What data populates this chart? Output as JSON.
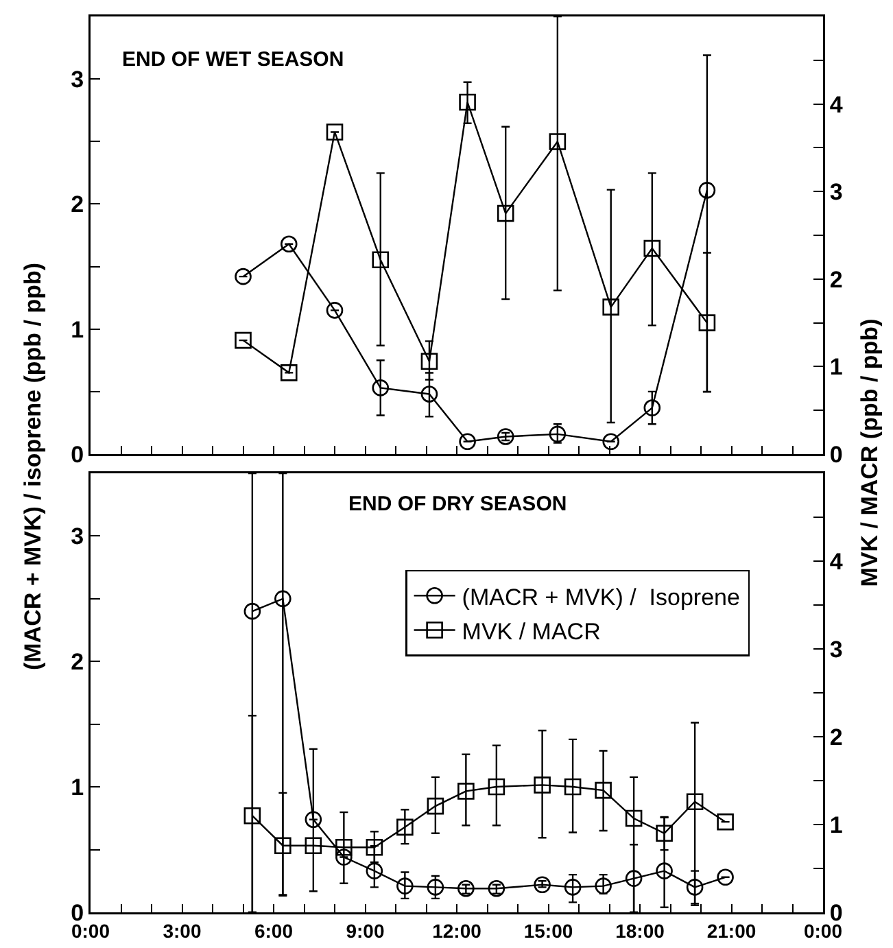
{
  "chart_data": [
    {
      "type": "line",
      "annotations": [
        "END OF WET SEASON"
      ],
      "ylabel": "(MACR + MVK) / isoprene   (ppb / ppb)",
      "y2label": "MVK / MACR   (ppb / ppb)",
      "xlim": [
        0,
        24
      ],
      "xticks": [
        {
          "value": 0,
          "label": null
        },
        {
          "value": 1,
          "label": null
        },
        {
          "value": 2,
          "label": null
        },
        {
          "value": 3,
          "label": null
        },
        {
          "value": 4,
          "label": null
        },
        {
          "value": 5,
          "label": null
        },
        {
          "value": 6,
          "label": null
        },
        {
          "value": 7,
          "label": null
        },
        {
          "value": 8,
          "label": null
        },
        {
          "value": 9,
          "label": null
        },
        {
          "value": 10,
          "label": null
        },
        {
          "value": 11,
          "label": null
        },
        {
          "value": 12,
          "label": null
        },
        {
          "value": 13,
          "label": null
        },
        {
          "value": 14,
          "label": null
        },
        {
          "value": 15,
          "label": null
        },
        {
          "value": 16,
          "label": null
        },
        {
          "value": 17,
          "label": null
        },
        {
          "value": 18,
          "label": null
        },
        {
          "value": 19,
          "label": null
        },
        {
          "value": 20,
          "label": null
        },
        {
          "value": 21,
          "label": null
        },
        {
          "value": 22,
          "label": null
        },
        {
          "value": 23,
          "label": null
        },
        {
          "value": 24,
          "label": null
        }
      ],
      "ylim": [
        0,
        3.5
      ],
      "yticks": [
        0,
        {
          "value": 0.5,
          "label": null
        },
        1,
        {
          "value": 1.5,
          "label": null
        },
        2,
        {
          "value": 2.5,
          "label": null
        },
        3
      ],
      "y2lim": [
        0,
        5
      ],
      "y2ticks": [
        0,
        {
          "value": 0.5,
          "label": null
        },
        1,
        {
          "value": 1.5,
          "label": null
        },
        2,
        {
          "value": 2.5,
          "label": null
        },
        3,
        {
          "value": 3.5,
          "label": null
        },
        4,
        {
          "value": 4.5,
          "label": null
        }
      ],
      "tick_labels": "y",
      "grid": false,
      "legend": false,
      "line_style": "solid",
      "series": [
        {
          "color": "#000000",
          "marker": "circle",
          "x": [
            5.0,
            6.5,
            8.0,
            9.5,
            11.1,
            12.35,
            13.6,
            15.3,
            17.05,
            18.4,
            20.2
          ],
          "values": [
            1.42,
            1.68,
            1.15,
            0.53,
            0.48,
            0.1,
            0.14,
            0.16,
            0.1,
            0.37,
            2.11
          ],
          "errors": [
            null,
            null,
            null,
            [
              0.31,
              0.75
            ],
            [
              0.3,
              0.65
            ],
            null,
            [
              0.11,
              0.17
            ],
            [
              0.09,
              0.24
            ],
            null,
            [
              0.24,
              0.5
            ],
            [
              0.5,
              3.19
            ]
          ]
        },
        {
          "color": "#000000",
          "marker": "square",
          "axis": "y2",
          "x": [
            5.0,
            6.5,
            8.0,
            9.5,
            11.1,
            12.35,
            13.6,
            15.3,
            17.05,
            18.4,
            20.2
          ],
          "values": [
            1.3,
            0.93,
            3.68,
            2.22,
            1.06,
            4.02,
            2.75,
            3.57,
            1.68,
            2.35,
            1.5
          ],
          "errors": [
            null,
            null,
            null,
            [
              1.24,
              3.21
            ],
            [
              0.85,
              1.29
            ],
            [
              3.78,
              4.25
            ],
            [
              1.77,
              3.74
            ],
            [
              1.87,
              5.0
            ],
            [
              0.36,
              3.02
            ],
            [
              1.47,
              3.21
            ],
            [
              0.71,
              2.3
            ]
          ]
        }
      ]
    },
    {
      "type": "line",
      "annotations": [
        "END OF DRY SEASON"
      ],
      "xlim": [
        0,
        24
      ],
      "xticks": [
        {
          "value": 0,
          "label": "0:00"
        },
        {
          "value": 1,
          "label": null
        },
        {
          "value": 2,
          "label": null
        },
        {
          "value": 3,
          "label": "3:00"
        },
        {
          "value": 4,
          "label": null
        },
        {
          "value": 5,
          "label": null
        },
        {
          "value": 6,
          "label": "6:00"
        },
        {
          "value": 7,
          "label": null
        },
        {
          "value": 8,
          "label": null
        },
        {
          "value": 9,
          "label": "9:00"
        },
        {
          "value": 10,
          "label": null
        },
        {
          "value": 11,
          "label": null
        },
        {
          "value": 12,
          "label": "12:00"
        },
        {
          "value": 13,
          "label": null
        },
        {
          "value": 14,
          "label": null
        },
        {
          "value": 15,
          "label": "15:00"
        },
        {
          "value": 16,
          "label": null
        },
        {
          "value": 17,
          "label": null
        },
        {
          "value": 18,
          "label": "18:00"
        },
        {
          "value": 19,
          "label": null
        },
        {
          "value": 20,
          "label": null
        },
        {
          "value": 21,
          "label": "21:00"
        },
        {
          "value": 22,
          "label": null
        },
        {
          "value": 23,
          "label": null
        },
        {
          "value": 24,
          "label": "0:00"
        }
      ],
      "ylim": [
        0,
        3.5
      ],
      "yticks": [
        0,
        {
          "value": 0.5,
          "label": null
        },
        1,
        {
          "value": 1.5,
          "label": null
        },
        2,
        {
          "value": 2.5,
          "label": null
        },
        3
      ],
      "y2lim": [
        0,
        5
      ],
      "y2ticks": [
        0,
        {
          "value": 0.5,
          "label": null
        },
        1,
        {
          "value": 1.5,
          "label": null
        },
        2,
        {
          "value": 2.5,
          "label": null
        },
        3,
        {
          "value": 3.5,
          "label": null
        },
        4,
        {
          "value": 4.5,
          "label": null
        }
      ],
      "grid": false,
      "legend": "top right",
      "line_style": "solid",
      "series": [
        {
          "name": "(MACR + MVK) /  Isoprene",
          "color": "#000000",
          "marker": "circle",
          "x": [
            5.3,
            6.3,
            7.3,
            8.3,
            9.3,
            10.3,
            11.3,
            12.3,
            13.3,
            14.8,
            15.8,
            16.8,
            17.8,
            18.8,
            19.8,
            20.8
          ],
          "values": [
            2.4,
            2.5,
            0.74,
            0.44,
            0.33,
            0.21,
            0.2,
            0.19,
            0.19,
            0.22,
            0.2,
            0.21,
            0.27,
            0.33,
            0.2,
            0.28
          ],
          "errors": [
            [
              0,
              3.5
            ],
            [
              0.14,
              3.5
            ],
            null,
            null,
            [
              0.2,
              0.53
            ],
            [
              0.11,
              0.32
            ],
            [
              0.11,
              0.29
            ],
            [
              0.15,
              0.22
            ],
            [
              0.15,
              0.22
            ],
            [
              0.2,
              0.25
            ],
            [
              0.08,
              0.3
            ],
            [
              0.15,
              0.3
            ],
            [
              0,
              0.54
            ],
            [
              0.04,
              0.76
            ],
            [
              0.07,
              0.33
            ],
            null
          ]
        },
        {
          "name": "MVK / MACR",
          "color": "#000000",
          "marker": "square",
          "axis": "y2",
          "x": [
            5.3,
            6.3,
            7.3,
            8.3,
            9.3,
            10.3,
            11.3,
            12.3,
            13.3,
            14.8,
            15.8,
            16.8,
            17.8,
            18.8,
            19.8,
            20.8
          ],
          "values": [
            1.1,
            0.76,
            0.76,
            0.74,
            0.74,
            0.97,
            1.21,
            1.38,
            1.43,
            1.45,
            1.43,
            1.39,
            1.07,
            0.9,
            1.26,
            1.03
          ],
          "errors": [
            [
              0,
              2.24
            ],
            [
              0.19,
              1.36
            ],
            [
              0.24,
              1.86
            ],
            [
              0.33,
              1.14
            ],
            [
              0.57,
              0.92
            ],
            [
              0.78,
              1.17
            ],
            [
              0.9,
              1.54
            ],
            [
              0.99,
              1.8
            ],
            [
              0.99,
              1.9
            ],
            [
              0.85,
              2.07
            ],
            [
              0.91,
              1.97
            ],
            [
              0.93,
              1.84
            ],
            [
              0,
              1.54
            ],
            [
              0.71,
              1.08
            ],
            [
              0.08,
              2.16
            ],
            null
          ]
        }
      ]
    }
  ]
}
